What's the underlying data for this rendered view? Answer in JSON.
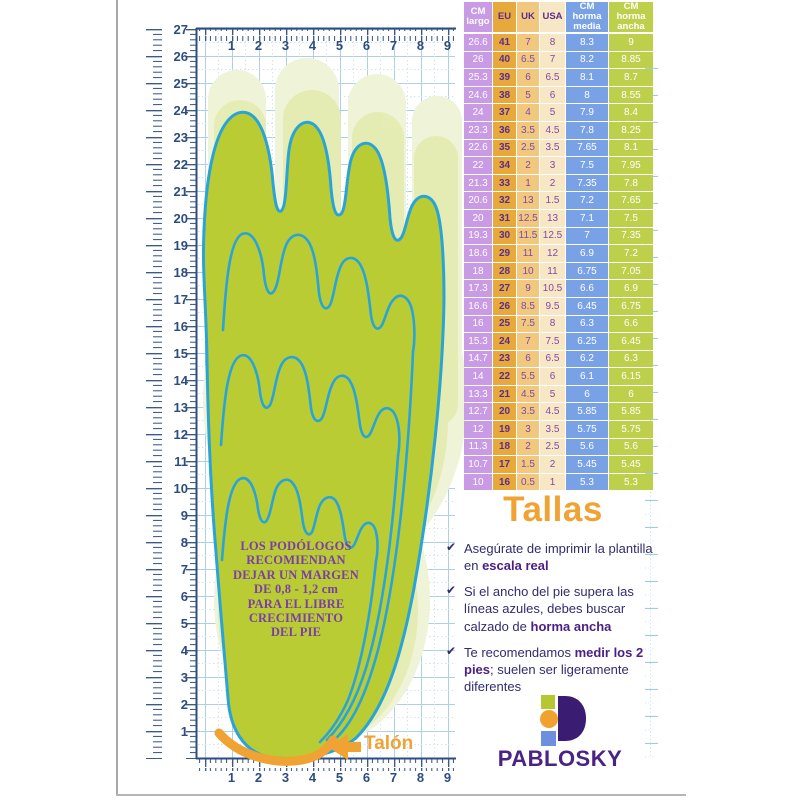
{
  "rulers": {
    "vertical_labels": [
      "27",
      "26",
      "25",
      "24",
      "23",
      "22",
      "21",
      "20",
      "19",
      "18",
      "17",
      "16",
      "15",
      "14",
      "13",
      "12",
      "11",
      "10",
      "9",
      "8",
      "7",
      "6",
      "5",
      "4",
      "3",
      "2",
      "1"
    ],
    "top_labels": [
      "1",
      "2",
      "3",
      "4",
      "5",
      "6",
      "7",
      "8",
      "9"
    ],
    "bottom_labels": [
      "1",
      "2",
      "3",
      "4",
      "5",
      "6",
      "7",
      "8",
      "9"
    ]
  },
  "foot": {
    "note_lines": [
      "LOS PODÓLOGOS",
      "RECOMIENDAN",
      "DEJAR UN MARGEN",
      "DE 0,8 - 1,2 cm",
      "PARA EL LIBRE",
      "CRECIMIENTO",
      "DEL PIE"
    ],
    "heel_label": "Talón"
  },
  "size_table": {
    "headers": [
      "CM\nlargo",
      "EU",
      "UK",
      "USA",
      "CM\nhorma\nmedia",
      "CM\nhorma\nancha"
    ],
    "rows": [
      [
        "26.6",
        "41",
        "7",
        "8",
        "8.3",
        "9"
      ],
      [
        "26",
        "40",
        "6.5",
        "7",
        "8.2",
        "8.85"
      ],
      [
        "25.3",
        "39",
        "6",
        "6.5",
        "8.1",
        "8.7"
      ],
      [
        "24.6",
        "38",
        "5",
        "6",
        "8",
        "8.55"
      ],
      [
        "24",
        "37",
        "4",
        "5",
        "7.9",
        "8.4"
      ],
      [
        "23.3",
        "36",
        "3.5",
        "4.5",
        "7.8",
        "8.25"
      ],
      [
        "22.6",
        "35",
        "2.5",
        "3.5",
        "7.65",
        "8.1"
      ],
      [
        "22",
        "34",
        "2",
        "3",
        "7.5",
        "7.95"
      ],
      [
        "21.3",
        "33",
        "1",
        "2",
        "7.35",
        "7.8"
      ],
      [
        "20.6",
        "32",
        "13",
        "1.5",
        "7.2",
        "7.65"
      ],
      [
        "20",
        "31",
        "12.5",
        "13",
        "7.1",
        "7.5"
      ],
      [
        "19.3",
        "30",
        "11.5",
        "12.5",
        "7",
        "7.35"
      ],
      [
        "18.6",
        "29",
        "11",
        "12",
        "6.9",
        "7.2"
      ],
      [
        "18",
        "28",
        "10",
        "11",
        "6.75",
        "7.05"
      ],
      [
        "17.3",
        "27",
        "9",
        "10.5",
        "6.6",
        "6.9"
      ],
      [
        "16.6",
        "26",
        "8.5",
        "9.5",
        "6.45",
        "6.75"
      ],
      [
        "16",
        "25",
        "7.5",
        "8",
        "6.3",
        "6.6"
      ],
      [
        "15.3",
        "24",
        "7",
        "7.5",
        "6.25",
        "6.45"
      ],
      [
        "14.7",
        "23",
        "6",
        "6.5",
        "6.2",
        "6.3"
      ],
      [
        "14",
        "22",
        "5.5",
        "6",
        "6.1",
        "6.15"
      ],
      [
        "13.3",
        "21",
        "4.5",
        "5",
        "6",
        "6"
      ],
      [
        "12.7",
        "20",
        "3.5",
        "4.5",
        "5.85",
        "5.85"
      ],
      [
        "12",
        "19",
        "3",
        "3.5",
        "5.75",
        "5.75"
      ],
      [
        "11.3",
        "18",
        "2",
        "2.5",
        "5.6",
        "5.6"
      ],
      [
        "10.7",
        "17",
        "1.5",
        "2",
        "5.45",
        "5.45"
      ],
      [
        "10",
        "16",
        "0.5",
        "1",
        "5.3",
        "5.3"
      ]
    ]
  },
  "tallas": {
    "title": "Tallas",
    "check_icon": "✔",
    "items": [
      {
        "before": "Asegúrate de imprimir la plantilla en ",
        "bold": "escala real",
        "after": ""
      },
      {
        "before": "Si el ancho del pie supera las líneas azules, debes buscar calzado de ",
        "bold": "horma ancha",
        "after": ""
      },
      {
        "before": "Te recomendamos ",
        "bold": "medir los 2 pies",
        "after": "; suelen ser ligeramente diferentes"
      }
    ]
  },
  "brand": {
    "name": "PABLOSKY"
  },
  "colors": {
    "accent_orange": "#f0a233",
    "foot_green": "#b9cc34",
    "outline_blue": "#29a4d8",
    "ruler_navy": "#2d4d80",
    "grid_blue": "#aecfe6",
    "col_cm_largo": "#c89be4",
    "col_eu": "#e7a83c",
    "col_uk": "#f2c87f",
    "col_usa": "#f8e7c4",
    "col_horma_media": "#79a1e6",
    "col_horma_ancha": "#bdd04c",
    "brand_purple": "#4a2383"
  }
}
